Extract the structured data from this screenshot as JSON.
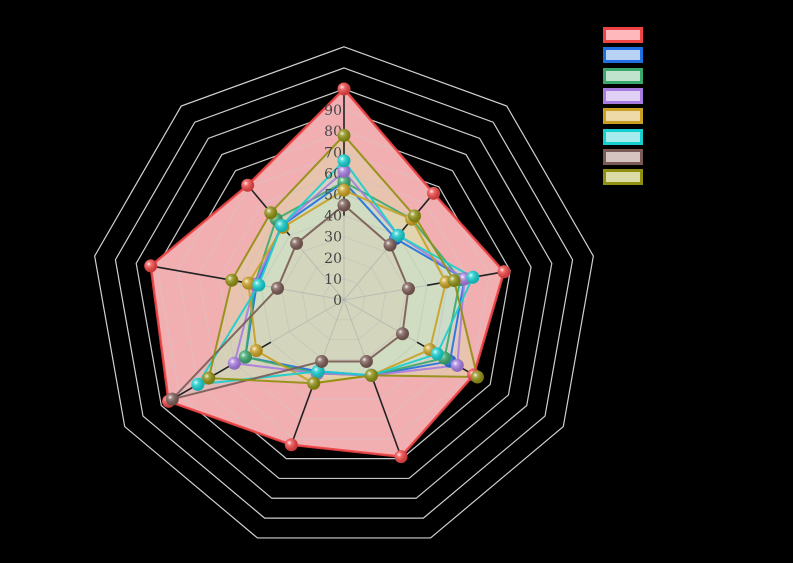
{
  "chart_data": {
    "type": "radar",
    "title": "",
    "axes_count": 9,
    "axis_labels": [
      "",
      "",
      "",
      "",
      "",
      "",
      "",
      "",
      ""
    ],
    "radial_ticks": [
      0,
      10,
      20,
      30,
      40,
      50,
      60,
      70,
      80,
      90
    ],
    "rlim": [
      0,
      100
    ],
    "grid": true,
    "legend_position": "top-right",
    "series": [
      {
        "name": "",
        "color": "#ef4444",
        "fill": "#ffb8bc",
        "values": [
          100,
          66,
          77,
          71,
          79,
          73,
          96,
          93,
          71
        ]
      },
      {
        "name": "",
        "color": "#1f6fe0",
        "fill": "#b7d2f5",
        "values": [
          56,
          38,
          58,
          58,
          38,
          36,
          54,
          42,
          46
        ]
      },
      {
        "name": "",
        "color": "#3aa86a",
        "fill": "#bfe3cc",
        "values": [
          56,
          50,
          56,
          55,
          38,
          37,
          54,
          43,
          50
        ]
      },
      {
        "name": "",
        "color": "#a77be0",
        "fill": "#e0d0f5",
        "values": [
          61,
          40,
          58,
          62,
          38,
          37,
          60,
          43,
          46
        ]
      },
      {
        "name": "",
        "color": "#c9a020",
        "fill": "#eedaa8",
        "values": [
          52,
          50,
          49,
          47,
          38,
          42,
          48,
          46,
          45
        ]
      },
      {
        "name": "",
        "color": "#15cfcf",
        "fill": "#a6ecec",
        "values": [
          66,
          40,
          62,
          51,
          38,
          36,
          80,
          41,
          46
        ]
      },
      {
        "name": "",
        "color": "#7a5a54",
        "fill": "#d5c4c0",
        "values": [
          45,
          34,
          31,
          32,
          31,
          31,
          94,
          32,
          35
        ]
      },
      {
        "name": "",
        "color": "#8f8f10",
        "fill": "#dcdca8",
        "values": [
          78,
          52,
          53,
          73,
          38,
          42,
          74,
          54,
          54
        ]
      }
    ]
  },
  "legend": {
    "items": [
      {
        "label": "",
        "color": "#ef4444",
        "fill": "#ffb8bc"
      },
      {
        "label": "",
        "color": "#1f6fe0",
        "fill": "#b7d2f5"
      },
      {
        "label": "",
        "color": "#3aa86a",
        "fill": "#bfe3cc"
      },
      {
        "label": "",
        "color": "#a77be0",
        "fill": "#e0d0f5"
      },
      {
        "label": "",
        "color": "#c9a020",
        "fill": "#eedaa8"
      },
      {
        "label": "",
        "color": "#15cfcf",
        "fill": "#a6ecec"
      },
      {
        "label": "",
        "color": "#7a5a54",
        "fill": "#d5c4c0"
      },
      {
        "label": "",
        "color": "#8f8f10",
        "fill": "#dcdca8"
      }
    ]
  }
}
